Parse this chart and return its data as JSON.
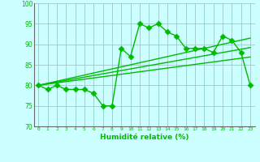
{
  "x": [
    0,
    1,
    2,
    3,
    4,
    5,
    6,
    7,
    8,
    9,
    10,
    11,
    12,
    13,
    14,
    15,
    16,
    17,
    18,
    19,
    20,
    21,
    22,
    23
  ],
  "y_main": [
    80,
    79,
    80,
    79,
    79,
    79,
    78,
    75,
    75,
    89,
    87,
    95,
    94,
    95,
    93,
    92,
    89,
    89,
    89,
    88,
    92,
    91,
    88,
    80
  ],
  "y_line1": [
    80.0,
    80.5,
    81.0,
    81.5,
    82.0,
    82.5,
    83.0,
    83.5,
    84.0,
    84.5,
    85.0,
    85.5,
    86.0,
    86.5,
    87.0,
    87.5,
    88.0,
    88.5,
    89.0,
    89.5,
    90.0,
    90.5,
    91.0,
    91.5
  ],
  "y_line2": [
    80.0,
    80.4,
    80.8,
    81.2,
    81.6,
    82.0,
    82.4,
    82.8,
    83.2,
    83.6,
    84.0,
    84.4,
    84.8,
    85.2,
    85.6,
    86.0,
    86.4,
    86.8,
    87.2,
    87.6,
    88.0,
    88.4,
    88.8,
    89.2
  ],
  "y_line3": [
    80.0,
    80.3,
    80.6,
    80.9,
    81.2,
    81.5,
    81.8,
    82.1,
    82.4,
    82.7,
    83.0,
    83.3,
    83.6,
    83.9,
    84.2,
    84.5,
    84.8,
    85.1,
    85.4,
    85.7,
    86.0,
    86.3,
    86.6,
    86.9
  ],
  "line_color": "#00BB00",
  "bg_color": "#CCFFFF",
  "grid_color": "#99BBBB",
  "xlim": [
    -0.5,
    23.5
  ],
  "ylim": [
    70,
    100
  ],
  "yticks": [
    70,
    75,
    80,
    85,
    90,
    95,
    100
  ],
  "xlabel": "Humidité relative (%)",
  "xlabel_color": "#00BB00",
  "markersize": 3.5,
  "linewidth": 1.0
}
